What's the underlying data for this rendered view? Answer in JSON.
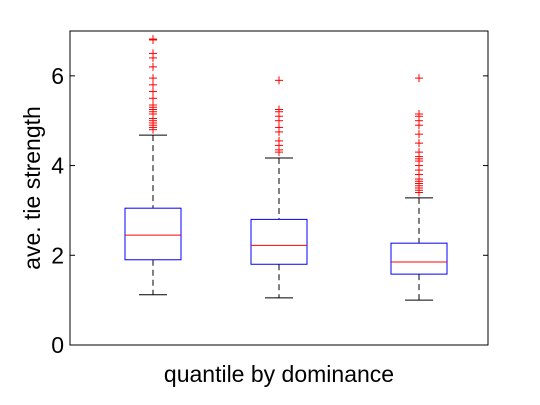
{
  "chart_data": {
    "type": "box",
    "xlabel": "quantile by dominance",
    "ylabel": "ave. tie strength",
    "ylim": [
      0,
      7
    ],
    "yticks": [
      0,
      2,
      4,
      6
    ],
    "grid": false,
    "colors": {
      "box": "#0000ff",
      "median": "#ff0000",
      "whisker": "#000000",
      "outlier": "#ff0000"
    },
    "boxes": [
      {
        "whisker_low": 1.12,
        "q1": 1.9,
        "median": 2.45,
        "q3": 3.05,
        "whisker_high": 4.68,
        "outliers": [
          4.8,
          4.85,
          4.9,
          4.95,
          5.0,
          5.05,
          5.15,
          5.2,
          5.25,
          5.3,
          5.35,
          5.5,
          5.65,
          5.8,
          5.95,
          6.2,
          6.4,
          6.5,
          6.8,
          6.82
        ]
      },
      {
        "whisker_low": 1.05,
        "q1": 1.8,
        "median": 2.22,
        "q3": 2.8,
        "whisker_high": 4.17,
        "outliers": [
          4.3,
          4.35,
          4.45,
          4.55,
          4.75,
          4.85,
          5.0,
          5.1,
          5.2,
          5.25,
          5.9
        ]
      },
      {
        "whisker_low": 1.0,
        "q1": 1.58,
        "median": 1.85,
        "q3": 2.27,
        "whisker_high": 3.28,
        "outliers": [
          3.4,
          3.45,
          3.5,
          3.55,
          3.6,
          3.65,
          3.7,
          3.8,
          3.9,
          4.0,
          4.1,
          4.15,
          4.2,
          4.3,
          4.5,
          4.7,
          4.9,
          5.0,
          5.1,
          5.15,
          5.95
        ]
      }
    ]
  }
}
